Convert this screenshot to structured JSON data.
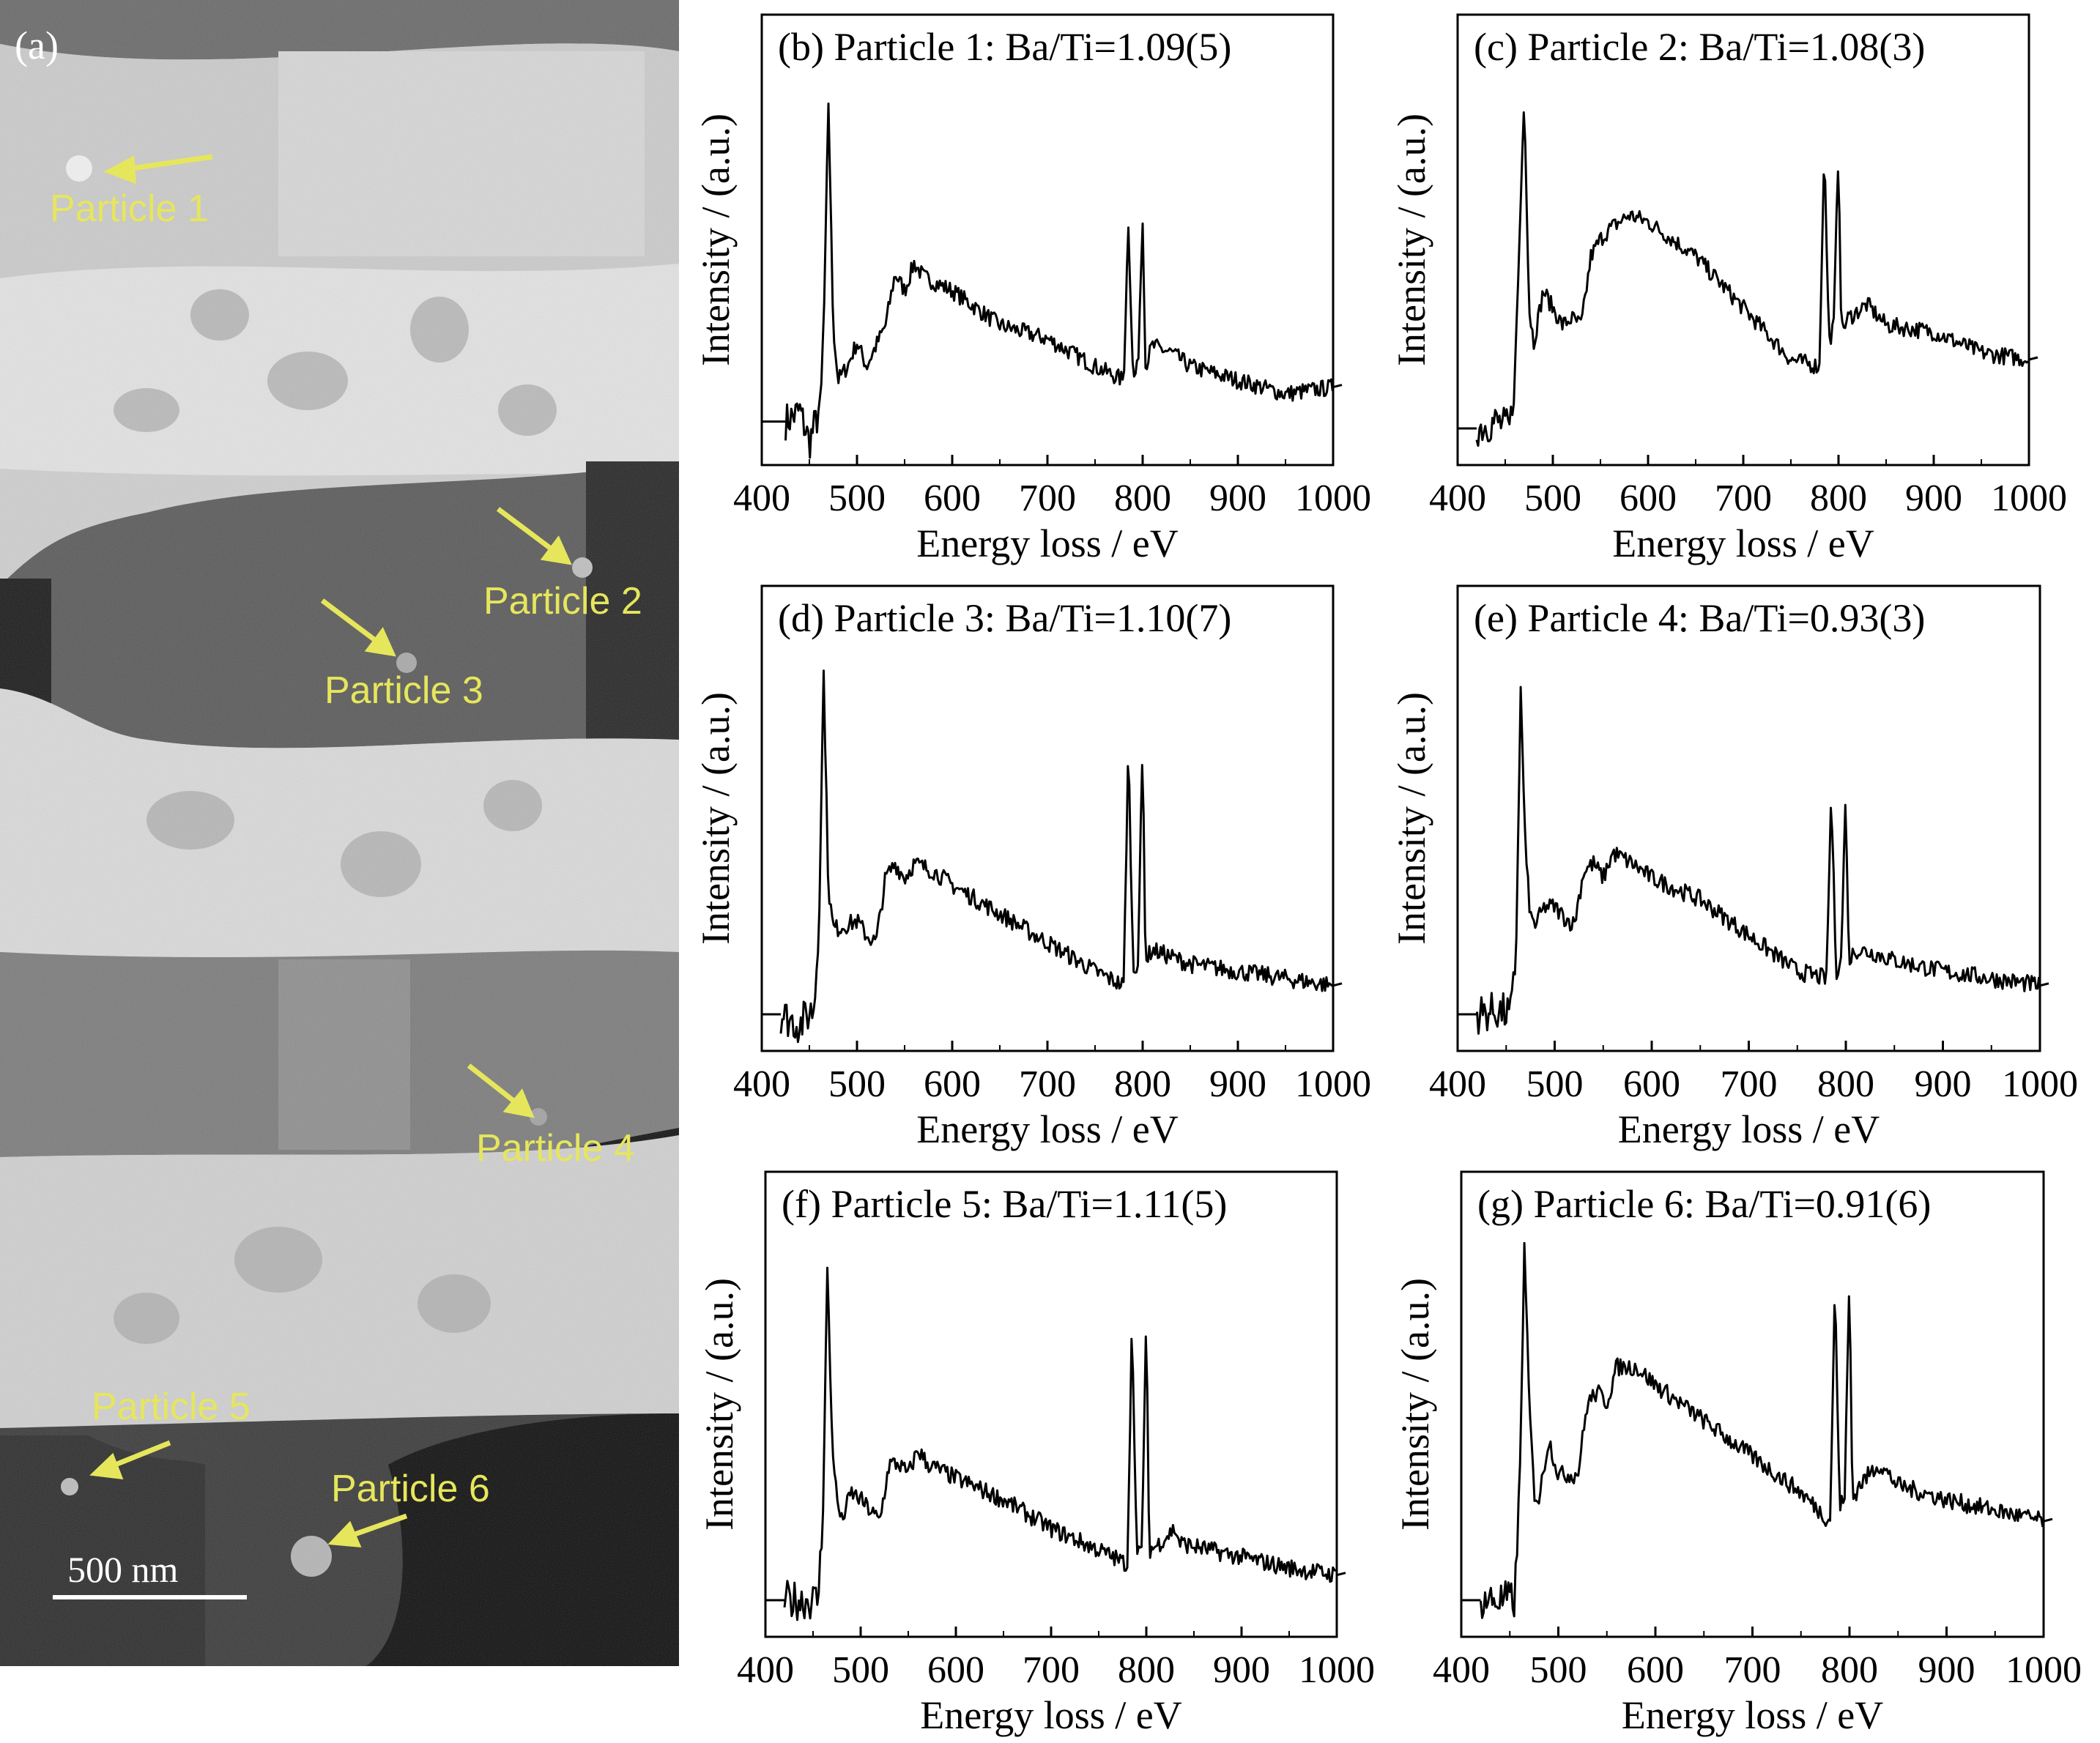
{
  "micrograph": {
    "panel_label": "(a)",
    "scale_bar_label": "500 nm",
    "particle_labels": [
      "Particle 1",
      "Particle 2",
      "Particle 3",
      "Particle 4",
      "Particle 5",
      "Particle 6"
    ],
    "label_color": "#e6e65c"
  },
  "chart_data": [
    {
      "type": "line",
      "panel": "(b)",
      "title": "Particle 1: Ba/Ti=1.09(5)",
      "xlabel": "Energy loss / eV",
      "ylabel": "Intensity / (a.u.)",
      "xlim": [
        400,
        1000
      ],
      "ylim": [
        0,
        1
      ],
      "xticks": [
        "400",
        "500",
        "600",
        "700",
        "800",
        "900",
        "1000"
      ],
      "series": [
        {
          "x": [
            425,
            440,
            450,
            458,
            462,
            466,
            470,
            475,
            480,
            490,
            500,
            510,
            520,
            530,
            540,
            550,
            560,
            570,
            600,
            650,
            700,
            750,
            780,
            785,
            790,
            795,
            800,
            803,
            810,
            830,
            850,
            900,
            950,
            1000
          ],
          "y": [
            0.02,
            0.05,
            -0.04,
            0.03,
            0.08,
            0.4,
            0.95,
            0.3,
            0.14,
            0.18,
            0.25,
            0.18,
            0.24,
            0.3,
            0.45,
            0.4,
            0.48,
            0.44,
            0.4,
            0.3,
            0.26,
            0.18,
            0.14,
            0.6,
            0.14,
            0.18,
            0.62,
            0.18,
            0.24,
            0.22,
            0.18,
            0.14,
            0.1,
            0.12
          ]
        }
      ]
    },
    {
      "type": "line",
      "panel": "(c)",
      "title": "Particle 2: Ba/Ti=1.08(3)",
      "xlabel": "Energy loss / eV",
      "ylabel": "Intensity / (a.u.)",
      "xlim": [
        400,
        1000
      ],
      "ylim": [
        0,
        1
      ],
      "xticks": [
        "400",
        "500",
        "600",
        "700",
        "800",
        "900",
        "1000"
      ],
      "series": [
        {
          "x": [
            420,
            440,
            455,
            460,
            465,
            470,
            475,
            480,
            490,
            500,
            510,
            520,
            530,
            540,
            550,
            560,
            580,
            600,
            650,
            700,
            750,
            780,
            785,
            790,
            795,
            800,
            803,
            810,
            830,
            850,
            900,
            950,
            1000
          ],
          "y": [
            0.0,
            0.02,
            0.0,
            0.15,
            0.55,
            0.98,
            0.35,
            0.25,
            0.4,
            0.35,
            0.3,
            0.32,
            0.3,
            0.5,
            0.55,
            0.58,
            0.62,
            0.6,
            0.5,
            0.35,
            0.2,
            0.18,
            0.82,
            0.25,
            0.3,
            0.82,
            0.28,
            0.32,
            0.36,
            0.3,
            0.28,
            0.22,
            0.2
          ]
        }
      ]
    },
    {
      "type": "line",
      "panel": "(d)",
      "title": "Particle 3: Ba/Ti=1.10(7)",
      "xlabel": "Energy loss / eV",
      "ylabel": "Intensity / (a.u.)",
      "xlim": [
        400,
        1000
      ],
      "ylim": [
        0,
        1
      ],
      "xticks": [
        "400",
        "500",
        "600",
        "700",
        "800",
        "900",
        "1000"
      ],
      "series": [
        {
          "x": [
            420,
            440,
            455,
            460,
            465,
            470,
            475,
            480,
            500,
            510,
            520,
            530,
            540,
            550,
            560,
            580,
            600,
            650,
            700,
            750,
            780,
            785,
            790,
            795,
            800,
            803,
            810,
            830,
            850,
            900,
            950,
            1000
          ],
          "y": [
            0.0,
            -0.03,
            0.02,
            0.25,
            0.95,
            0.35,
            0.24,
            0.24,
            0.26,
            0.22,
            0.2,
            0.38,
            0.42,
            0.38,
            0.42,
            0.4,
            0.36,
            0.28,
            0.2,
            0.12,
            0.08,
            0.75,
            0.12,
            0.15,
            0.75,
            0.15,
            0.18,
            0.16,
            0.14,
            0.12,
            0.1,
            0.08
          ]
        }
      ]
    },
    {
      "type": "line",
      "panel": "(e)",
      "title": "Particle 4: Ba/Ti=0.93(3)",
      "xlabel": "Energy loss / eV",
      "ylabel": "Intensity / (a.u.)",
      "xlim": [
        400,
        1000
      ],
      "ylim": [
        0,
        1
      ],
      "xticks": [
        "400",
        "500",
        "600",
        "700",
        "800",
        "900",
        "1000"
      ],
      "series": [
        {
          "x": [
            420,
            440,
            455,
            460,
            465,
            470,
            475,
            480,
            490,
            500,
            510,
            520,
            530,
            540,
            550,
            560,
            580,
            600,
            650,
            700,
            750,
            780,
            785,
            790,
            795,
            800,
            803,
            810,
            830,
            850,
            900,
            950,
            1000
          ],
          "y": [
            0.0,
            0.01,
            0.0,
            0.15,
            0.9,
            0.45,
            0.27,
            0.25,
            0.3,
            0.3,
            0.27,
            0.25,
            0.4,
            0.42,
            0.38,
            0.45,
            0.42,
            0.38,
            0.32,
            0.22,
            0.12,
            0.1,
            0.62,
            0.12,
            0.15,
            0.62,
            0.15,
            0.18,
            0.17,
            0.15,
            0.12,
            0.1,
            0.08
          ]
        }
      ]
    },
    {
      "type": "line",
      "panel": "(f)",
      "title": "Particle 5: Ba/Ti=1.11(5)",
      "xlabel": "Energy loss / eV",
      "ylabel": "Intensity / (a.u.)",
      "xlim": [
        400,
        1000
      ],
      "ylim": [
        0,
        1
      ],
      "xticks": [
        "400",
        "500",
        "600",
        "700",
        "800",
        "900",
        "1000"
      ],
      "series": [
        {
          "x": [
            420,
            440,
            455,
            460,
            465,
            470,
            475,
            480,
            490,
            500,
            510,
            520,
            530,
            540,
            550,
            560,
            570,
            600,
            650,
            700,
            750,
            780,
            785,
            790,
            795,
            800,
            803,
            810,
            830,
            835,
            850,
            900,
            950,
            1000
          ],
          "y": [
            0.0,
            0.0,
            0.0,
            0.2,
            0.92,
            0.45,
            0.28,
            0.22,
            0.3,
            0.28,
            0.25,
            0.22,
            0.38,
            0.38,
            0.35,
            0.42,
            0.38,
            0.34,
            0.28,
            0.2,
            0.14,
            0.1,
            0.78,
            0.12,
            0.14,
            0.78,
            0.14,
            0.15,
            0.2,
            0.16,
            0.15,
            0.12,
            0.09,
            0.07
          ]
        }
      ]
    },
    {
      "type": "line",
      "panel": "(g)",
      "title": "Particle 6: Ba/Ti=0.91(6)",
      "xlabel": "Energy loss / eV",
      "ylabel": "Intensity / (a.u.)",
      "xlim": [
        400,
        1000
      ],
      "ylim": [
        0,
        1
      ],
      "xticks": [
        "400",
        "500",
        "600",
        "700",
        "800",
        "900",
        "1000"
      ],
      "series": [
        {
          "x": [
            420,
            440,
            455,
            460,
            465,
            470,
            475,
            480,
            490,
            500,
            510,
            520,
            530,
            540,
            550,
            560,
            580,
            600,
            650,
            700,
            750,
            780,
            785,
            790,
            795,
            800,
            803,
            810,
            830,
            850,
            900,
            950,
            1000
          ],
          "y": [
            0.0,
            0.0,
            0.0,
            0.3,
            0.98,
            0.55,
            0.3,
            0.28,
            0.45,
            0.35,
            0.35,
            0.35,
            0.55,
            0.58,
            0.55,
            0.65,
            0.65,
            0.6,
            0.5,
            0.4,
            0.3,
            0.22,
            0.88,
            0.25,
            0.3,
            0.9,
            0.28,
            0.32,
            0.38,
            0.32,
            0.28,
            0.25,
            0.22
          ]
        }
      ]
    }
  ]
}
